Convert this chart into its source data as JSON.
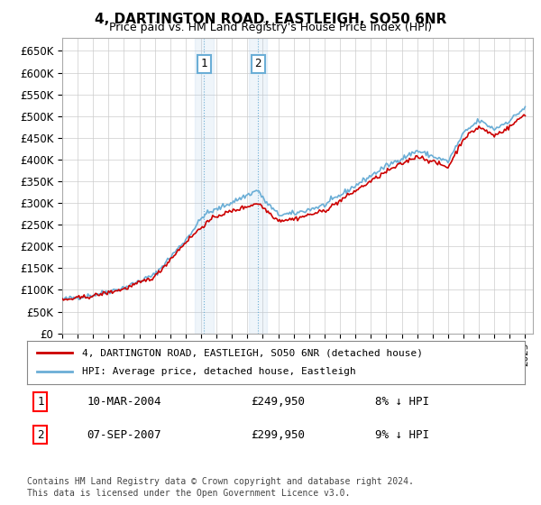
{
  "title": "4, DARTINGTON ROAD, EASTLEIGH, SO50 6NR",
  "subtitle": "Price paid vs. HM Land Registry's House Price Index (HPI)",
  "ylabel_ticks": [
    "£0",
    "£50K",
    "£100K",
    "£150K",
    "£200K",
    "£250K",
    "£300K",
    "£350K",
    "£400K",
    "£450K",
    "£500K",
    "£550K",
    "£600K",
    "£650K"
  ],
  "ytick_values": [
    0,
    50000,
    100000,
    150000,
    200000,
    250000,
    300000,
    350000,
    400000,
    450000,
    500000,
    550000,
    600000,
    650000
  ],
  "ylim": [
    0,
    680000
  ],
  "xlim_start": 1995.0,
  "xlim_end": 2025.5,
  "purchase1": {
    "year": 2004.19,
    "price": 249950,
    "label": "1",
    "date": "10-MAR-2004",
    "pct": "8%"
  },
  "purchase2": {
    "year": 2007.68,
    "price": 299950,
    "label": "2",
    "date": "07-SEP-2007",
    "pct": "9%"
  },
  "hpi_color": "#6baed6",
  "price_color": "#cc0000",
  "legend_entry1": "4, DARTINGTON ROAD, EASTLEIGH, SO50 6NR (detached house)",
  "legend_entry2": "HPI: Average price, detached house, Eastleigh",
  "footer1": "Contains HM Land Registry data © Crown copyright and database right 2024.",
  "footer2": "This data is licensed under the Open Government Licence v3.0.",
  "background_color": "#ffffff",
  "grid_color": "#cccccc"
}
